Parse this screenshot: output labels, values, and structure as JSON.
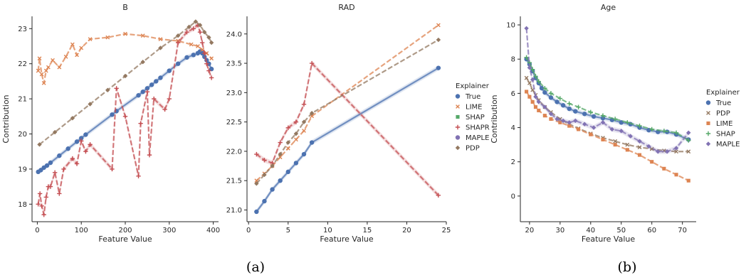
{
  "captions": [
    "(a)",
    "(b)"
  ],
  "colors": {
    "True": "#4C72B0",
    "LIME": "#DD8452",
    "SHAP": "#55A868",
    "SHAPR": "#C44E52",
    "MAPLE": "#8172B3",
    "PDP": "#937860"
  },
  "chart_data": [
    {
      "type": "line",
      "title": "B",
      "xlabel": "Feature Value",
      "ylabel": "Contribution",
      "xlim": [
        -12,
        412
      ],
      "ylim": [
        17.5,
        23.35
      ],
      "xticks": [
        0,
        100,
        200,
        300,
        400
      ],
      "yticks": [
        18,
        19,
        20,
        21,
        22,
        23
      ],
      "series": [
        {
          "name": "True",
          "marker": "circle",
          "band": true,
          "x": [
            2,
            8,
            15,
            22,
            30,
            50,
            70,
            90,
            100,
            110,
            170,
            180,
            230,
            240,
            250,
            260,
            270,
            280,
            300,
            320,
            340,
            355,
            365,
            370,
            375,
            380,
            385,
            390,
            396
          ],
          "y": [
            18.92,
            18.97,
            19.04,
            19.1,
            19.18,
            19.38,
            19.58,
            19.78,
            19.88,
            19.98,
            20.55,
            20.65,
            21.1,
            21.2,
            21.3,
            21.4,
            21.5,
            21.6,
            21.8,
            22.0,
            22.18,
            22.25,
            22.3,
            22.35,
            22.3,
            22.2,
            22.1,
            22.0,
            21.85
          ]
        },
        {
          "name": "LIME",
          "marker": "x",
          "band": false,
          "x": [
            2,
            5,
            10,
            15,
            20,
            25,
            35,
            50,
            65,
            80,
            90,
            100,
            120,
            160,
            200,
            240,
            280,
            320,
            350,
            365,
            375,
            385,
            396
          ],
          "y": [
            21.8,
            22.15,
            21.7,
            21.45,
            21.8,
            21.9,
            22.1,
            21.9,
            22.2,
            22.55,
            22.25,
            22.45,
            22.7,
            22.75,
            22.85,
            22.8,
            22.7,
            22.65,
            22.55,
            22.5,
            22.4,
            22.3,
            22.15
          ]
        },
        {
          "name": "SHAPR",
          "marker": "plus",
          "band": true,
          "x": [
            2,
            6,
            10,
            15,
            20,
            25,
            30,
            40,
            50,
            60,
            80,
            90,
            100,
            110,
            120,
            170,
            180,
            200,
            230,
            235,
            250,
            255,
            265,
            290,
            300,
            320,
            340,
            355,
            365,
            370,
            375,
            380,
            385,
            390,
            396
          ],
          "y": [
            18.0,
            18.3,
            17.95,
            17.7,
            18.2,
            18.5,
            18.5,
            18.9,
            18.3,
            19.0,
            19.3,
            19.15,
            19.8,
            19.5,
            19.7,
            19.0,
            21.3,
            20.5,
            18.8,
            20.3,
            21.2,
            19.4,
            21.0,
            20.7,
            21.0,
            22.6,
            22.9,
            23.0,
            23.1,
            22.9,
            22.6,
            22.3,
            22.0,
            21.8,
            21.6
          ]
        },
        {
          "name": "PDP",
          "marker": "diamond",
          "band": false,
          "x": [
            5,
            40,
            80,
            120,
            160,
            200,
            240,
            280,
            320,
            345,
            360,
            370,
            380,
            390,
            396
          ],
          "y": [
            19.7,
            20.05,
            20.45,
            20.85,
            21.25,
            21.65,
            22.05,
            22.45,
            22.8,
            23.05,
            23.2,
            23.1,
            22.9,
            22.75,
            22.6
          ]
        }
      ]
    },
    {
      "type": "line",
      "title": "RAD",
      "xlabel": "Feature Value",
      "ylabel": "",
      "xlim": [
        -0.2,
        25
      ],
      "ylim": [
        20.8,
        24.3
      ],
      "xticks": [
        0,
        5,
        10,
        15,
        20,
        25
      ],
      "yticks": [
        21.0,
        21.5,
        22.0,
        22.5,
        23.0,
        23.5,
        24.0
      ],
      "series": [
        {
          "name": "True",
          "marker": "circle",
          "band": true,
          "x": [
            1,
            2,
            3,
            4,
            5,
            6,
            7,
            8,
            24
          ],
          "y": [
            20.97,
            21.15,
            21.35,
            21.5,
            21.65,
            21.8,
            21.95,
            22.15,
            23.42
          ]
        },
        {
          "name": "LIME",
          "marker": "x",
          "band": false,
          "x": [
            1,
            2,
            3,
            4,
            5,
            6,
            7,
            8,
            24
          ],
          "y": [
            21.5,
            21.62,
            21.75,
            21.9,
            22.05,
            22.2,
            22.35,
            22.6,
            24.15
          ]
        },
        {
          "name": "SHAPR",
          "marker": "plus",
          "band": true,
          "x": [
            1,
            2,
            3,
            4,
            5,
            6,
            7,
            8,
            24
          ],
          "y": [
            21.95,
            21.85,
            21.8,
            22.15,
            22.4,
            22.5,
            22.8,
            23.5,
            21.25
          ]
        },
        {
          "name": "PDP",
          "marker": "diamond",
          "band": false,
          "x": [
            1,
            2,
            3,
            4,
            5,
            6,
            7,
            8,
            24
          ],
          "y": [
            21.45,
            21.6,
            21.75,
            21.95,
            22.15,
            22.3,
            22.5,
            22.65,
            23.9
          ]
        }
      ],
      "legend": {
        "title": "Explainer",
        "entries": [
          "True",
          "LIME",
          "SHAP",
          "SHAPR",
          "MAPLE",
          "PDP"
        ]
      }
    },
    {
      "type": "line",
      "title": "Age",
      "xlabel": "Feature Value",
      "ylabel": "Contribution",
      "xlim": [
        17,
        74.5
      ],
      "ylim": [
        -1.5,
        10.5
      ],
      "xticks": [
        20,
        30,
        40,
        50,
        60,
        70
      ],
      "yticks": [
        0,
        2,
        4,
        6,
        8,
        10
      ],
      "series": [
        {
          "name": "True",
          "marker": "circle",
          "band": true,
          "x": [
            19,
            20,
            21,
            22,
            23,
            24,
            25,
            27,
            29,
            31,
            33,
            35,
            38,
            41,
            44,
            47,
            50,
            53,
            56,
            59,
            62,
            65,
            68,
            72
          ],
          "y": [
            8.0,
            7.7,
            7.3,
            6.9,
            6.6,
            6.3,
            6.05,
            5.75,
            5.5,
            5.3,
            5.1,
            4.95,
            4.8,
            4.65,
            4.55,
            4.45,
            4.3,
            4.2,
            4.0,
            3.85,
            3.75,
            3.75,
            3.6,
            3.3
          ]
        },
        {
          "name": "PDP",
          "marker": "x",
          "band": false,
          "x": [
            19,
            20,
            21,
            22,
            23,
            25,
            27,
            30,
            33,
            36,
            40,
            44,
            48,
            52,
            56,
            60,
            64,
            68,
            72
          ],
          "y": [
            6.9,
            6.6,
            6.2,
            5.9,
            5.6,
            5.2,
            4.9,
            4.5,
            4.2,
            3.95,
            3.65,
            3.4,
            3.2,
            3.0,
            2.85,
            2.75,
            2.65,
            2.6,
            2.6
          ]
        },
        {
          "name": "LIME",
          "marker": "square",
          "band": false,
          "x": [
            19,
            20,
            21,
            22,
            23,
            25,
            27,
            30,
            33,
            36,
            40,
            44,
            48,
            52,
            56,
            60,
            64,
            68,
            72
          ],
          "y": [
            6.1,
            5.8,
            5.5,
            5.2,
            5.0,
            4.7,
            4.5,
            4.3,
            4.1,
            3.9,
            3.6,
            3.3,
            3.0,
            2.7,
            2.4,
            2.0,
            1.6,
            1.25,
            0.9
          ]
        },
        {
          "name": "SHAP",
          "marker": "plus",
          "band": false,
          "x": [
            19,
            20,
            21,
            22,
            23,
            25,
            27,
            30,
            33,
            36,
            40,
            44,
            48,
            52,
            56,
            60,
            64,
            68,
            72
          ],
          "y": [
            8.1,
            7.8,
            7.4,
            7.0,
            6.7,
            6.3,
            6.0,
            5.7,
            5.4,
            5.2,
            4.9,
            4.7,
            4.5,
            4.3,
            4.1,
            3.9,
            3.8,
            3.7,
            3.25
          ]
        },
        {
          "name": "MAPLE",
          "marker": "diamond",
          "band": true,
          "x": [
            19,
            20,
            21,
            22,
            23,
            25,
            27,
            29,
            31,
            33,
            35,
            38,
            41,
            44,
            47,
            50,
            53,
            56,
            59,
            62,
            65,
            68,
            72
          ],
          "y": [
            9.8,
            7.5,
            6.8,
            5.8,
            5.5,
            5.2,
            4.8,
            4.5,
            4.4,
            4.3,
            4.4,
            4.2,
            4.0,
            4.3,
            3.9,
            3.8,
            3.5,
            3.2,
            2.9,
            2.6,
            2.6,
            2.8,
            3.7
          ]
        }
      ],
      "legend": {
        "title": "Explainer",
        "entries": [
          "True",
          "PDP",
          "LIME",
          "SHAP",
          "MAPLE"
        ]
      }
    }
  ]
}
